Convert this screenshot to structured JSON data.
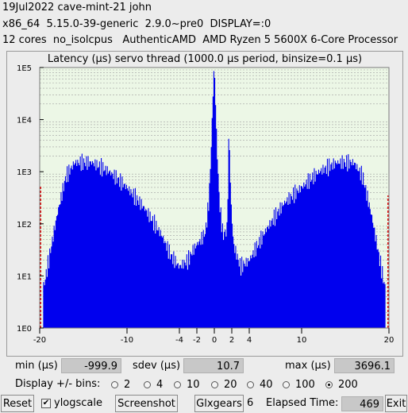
{
  "header": {
    "line1": "19Jul2022 cave-mint-21 john",
    "line2": "x86_64  5.15.0-39-generic  2.9.0~pre0  DISPLAY=:0",
    "line3": "12 cores  no_isolcpus   AuthenticAMD  AMD Ryzen 5 5600X 6-Core Processor"
  },
  "chart_data": {
    "type": "bar",
    "title": "Latency (µs) servo thread (1000.0 µs period, binsize=0.1 µs)",
    "y_scale": "log",
    "ylim": [
      1,
      100000
    ],
    "y_ticks": [
      "1E0",
      "1E1",
      "1E2",
      "1E3",
      "1E4",
      "1E5"
    ],
    "xlim": [
      -20,
      20
    ],
    "x_ticks": [
      "-20",
      "-10",
      "-4",
      "-2",
      "0",
      "2",
      "4",
      "10",
      "20"
    ],
    "x_tick_values": [
      -20,
      -10,
      -4,
      -2,
      0,
      2,
      4,
      10,
      20
    ],
    "bar_color": "#0000ee",
    "plot_background": "#ecf7e6",
    "edge_spike_color": "#e01010",
    "envelope": {
      "x": [
        -20,
        -19.4,
        -18,
        -17,
        -16,
        -14,
        -12,
        -10,
        -8,
        -6,
        -5,
        -4,
        -3,
        -2.5,
        -2,
        -1.5,
        -1,
        -0.6,
        -0.3,
        -0.1,
        0,
        0.1,
        0.3,
        0.6,
        1,
        1.5,
        1.6,
        1.7,
        1.9,
        2.2,
        3,
        4,
        5,
        6,
        8,
        10,
        12,
        14,
        16,
        17,
        18,
        19.4,
        20
      ],
      "y": [
        3,
        8,
        150,
        800,
        1500,
        1500,
        1000,
        500,
        200,
        60,
        25,
        15,
        20,
        30,
        40,
        50,
        70,
        300,
        5000,
        60000,
        100000,
        40000,
        3000,
        250,
        60,
        80,
        2000,
        6000,
        300,
        40,
        15,
        20,
        40,
        80,
        250,
        500,
        1000,
        1500,
        1500,
        800,
        150,
        8,
        3
      ]
    },
    "edge_spikes": [
      {
        "x": -20,
        "y": 550
      },
      {
        "x": 20,
        "y": 350
      }
    ]
  },
  "stats": {
    "min_label": "min (µs)",
    "min_value": "-999.9",
    "sdev_label": "sdev (µs)",
    "sdev_value": "10.7",
    "max_label": "max (µs)",
    "max_value": "3696.1"
  },
  "bins": {
    "label": "Display +/- bins:",
    "options": [
      "2",
      "4",
      "10",
      "20",
      "40",
      "100",
      "200"
    ],
    "selected": "200"
  },
  "bottom": {
    "reset_label": "Reset",
    "ylog_label": "ylogscale",
    "ylog_checked": true,
    "screenshot_label": "Screenshot",
    "glxgears_label": "Glxgears",
    "glxgears_count": "6",
    "elapsed_label": "Elapsed Time:",
    "elapsed_value": "469",
    "exit_label": "Exit"
  }
}
